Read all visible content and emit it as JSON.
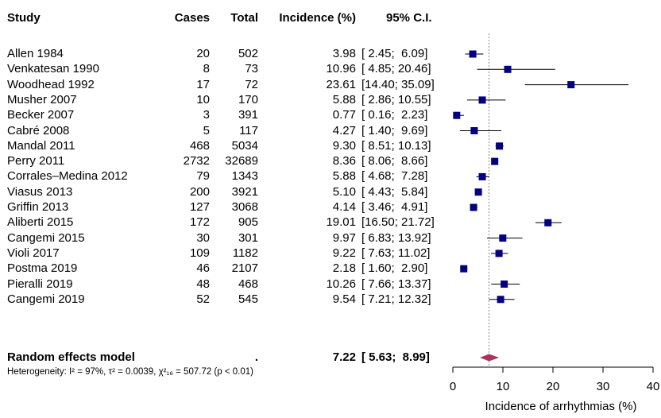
{
  "headers": {
    "study": "Study",
    "cases": "Cases",
    "total": "Total",
    "incidence": "Incidence (%)",
    "ci": "95% C.I."
  },
  "chart_data": {
    "type": "forest",
    "title": "",
    "xlabel": "Incidence of arrhythmias (%)",
    "xlim": [
      0,
      40
    ],
    "xticks": [
      0,
      10,
      20,
      30,
      40
    ],
    "reference_line": 7.22,
    "colors": {
      "marker": "#000080",
      "ci_line": "#000000",
      "diamond": "#b03060",
      "reference": "#888888"
    },
    "studies": [
      {
        "study": "Allen 1984",
        "cases": "20",
        "total": "502",
        "incidence": "3.98",
        "ci": "[ 2.45;  6.09]",
        "est": 3.98,
        "lo": 2.45,
        "hi": 6.09
      },
      {
        "study": "Venkatesan 1990",
        "cases": "8",
        "total": "73",
        "incidence": "10.96",
        "ci": "[ 4.85; 20.46]",
        "est": 10.96,
        "lo": 4.85,
        "hi": 20.46
      },
      {
        "study": "Woodhead 1992",
        "cases": "17",
        "total": "72",
        "incidence": "23.61",
        "ci": "[14.40; 35.09]",
        "est": 23.61,
        "lo": 14.4,
        "hi": 35.09
      },
      {
        "study": "Musher 2007",
        "cases": "10",
        "total": "170",
        "incidence": "5.88",
        "ci": "[ 2.86; 10.55]",
        "est": 5.88,
        "lo": 2.86,
        "hi": 10.55
      },
      {
        "study": "Becker 2007",
        "cases": "3",
        "total": "391",
        "incidence": "0.77",
        "ci": "[ 0.16;  2.23]",
        "est": 0.77,
        "lo": 0.16,
        "hi": 2.23
      },
      {
        "study": "Cabré 2008",
        "cases": "5",
        "total": "117",
        "incidence": "4.27",
        "ci": "[ 1.40;  9.69]",
        "est": 4.27,
        "lo": 1.4,
        "hi": 9.69
      },
      {
        "study": "Mandal 2011",
        "cases": "468",
        "total": "5034",
        "incidence": "9.30",
        "ci": "[ 8.51; 10.13]",
        "est": 9.3,
        "lo": 8.51,
        "hi": 10.13
      },
      {
        "study": "Perry 2011",
        "cases": "2732",
        "total": "32689",
        "incidence": "8.36",
        "ci": "[ 8.06;  8.66]",
        "est": 8.36,
        "lo": 8.06,
        "hi": 8.66
      },
      {
        "study": "Corrales–Medina 2012",
        "cases": "79",
        "total": "1343",
        "incidence": "5.88",
        "ci": "[ 4.68;  7.28]",
        "est": 5.88,
        "lo": 4.68,
        "hi": 7.28
      },
      {
        "study": "Viasus 2013",
        "cases": "200",
        "total": "3921",
        "incidence": "5.10",
        "ci": "[ 4.43;  5.84]",
        "est": 5.1,
        "lo": 4.43,
        "hi": 5.84
      },
      {
        "study": "Griffin 2013",
        "cases": "127",
        "total": "3068",
        "incidence": "4.14",
        "ci": "[ 3.46;  4.91]",
        "est": 4.14,
        "lo": 3.46,
        "hi": 4.91
      },
      {
        "study": "Aliberti 2015",
        "cases": "172",
        "total": "905",
        "incidence": "19.01",
        "ci": "[16.50; 21.72]",
        "est": 19.01,
        "lo": 16.5,
        "hi": 21.72
      },
      {
        "study": "Cangemi 2015",
        "cases": "30",
        "total": "301",
        "incidence": "9.97",
        "ci": "[ 6.83; 13.92]",
        "est": 9.97,
        "lo": 6.83,
        "hi": 13.92
      },
      {
        "study": "Violi 2017",
        "cases": "109",
        "total": "1182",
        "incidence": "9.22",
        "ci": "[ 7.63; 11.02]",
        "est": 9.22,
        "lo": 7.63,
        "hi": 11.02
      },
      {
        "study": "Postma 2019",
        "cases": "46",
        "total": "2107",
        "incidence": "2.18",
        "ci": "[ 1.60;  2.90]",
        "est": 2.18,
        "lo": 1.6,
        "hi": 2.9
      },
      {
        "study": "Pieralli 2019",
        "cases": "48",
        "total": "468",
        "incidence": "10.26",
        "ci": "[ 7.66; 13.37]",
        "est": 10.26,
        "lo": 7.66,
        "hi": 13.37
      },
      {
        "study": "Cangemi 2019",
        "cases": "52",
        "total": "545",
        "incidence": "9.54",
        "ci": "[ 7.21; 12.32]",
        "est": 9.54,
        "lo": 7.21,
        "hi": 12.32
      }
    ],
    "summary": {
      "label": "Random effects model",
      "cases": ".",
      "incidence": "7.22",
      "ci": "[ 5.63;  8.99]",
      "est": 7.22,
      "lo": 5.63,
      "hi": 8.99
    },
    "heterogeneity": "Heterogeneity: I² = 97%, τ² = 0.0039, χ²₁₆ = 507.72 (p < 0.01)"
  }
}
